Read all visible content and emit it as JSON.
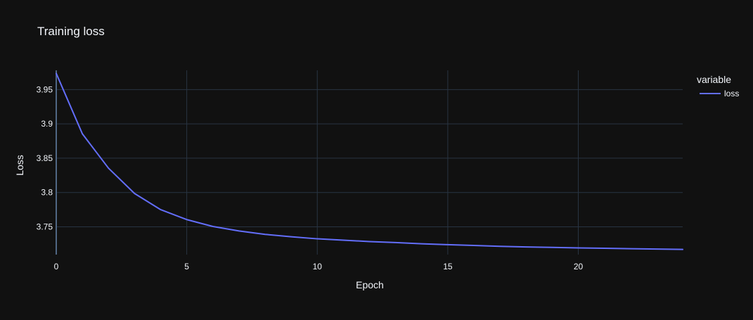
{
  "chart_data": {
    "type": "line",
    "title": "Training loss",
    "xlabel": "Epoch",
    "ylabel": "Loss",
    "xlim": [
      0,
      24
    ],
    "ylim": [
      3.7095,
      3.978
    ],
    "x_ticks": [
      0,
      5,
      10,
      15,
      20
    ],
    "y_ticks": [
      3.75,
      3.8,
      3.85,
      3.9,
      3.95
    ],
    "x_tick_labels": [
      "0",
      "5",
      "10",
      "15",
      "20"
    ],
    "y_tick_labels": [
      "3.75",
      "3.8",
      "3.85",
      "3.9",
      "3.95"
    ],
    "grid": true,
    "legend": {
      "title": "variable",
      "placement": "top-right",
      "entries": [
        "loss"
      ]
    },
    "series": [
      {
        "name": "loss",
        "color": "#636EFA",
        "x": [
          0,
          1,
          2,
          3,
          4,
          5,
          6,
          7,
          8,
          9,
          10,
          11,
          12,
          13,
          14,
          15,
          16,
          17,
          18,
          19,
          20,
          21,
          22,
          23,
          24
        ],
        "y": [
          3.9735,
          3.8855,
          3.8355,
          3.7985,
          3.775,
          3.7605,
          3.7505,
          3.744,
          3.739,
          3.7355,
          3.7325,
          3.7305,
          3.7285,
          3.727,
          3.7253,
          3.724,
          3.7228,
          3.7215,
          3.7207,
          3.72,
          3.7193,
          3.7187,
          3.7181,
          3.7176,
          3.717
        ]
      }
    ]
  },
  "colors": {
    "background": "#111111",
    "grid": "#283442",
    "text": "#f2f5fa",
    "series": "#636EFA"
  }
}
